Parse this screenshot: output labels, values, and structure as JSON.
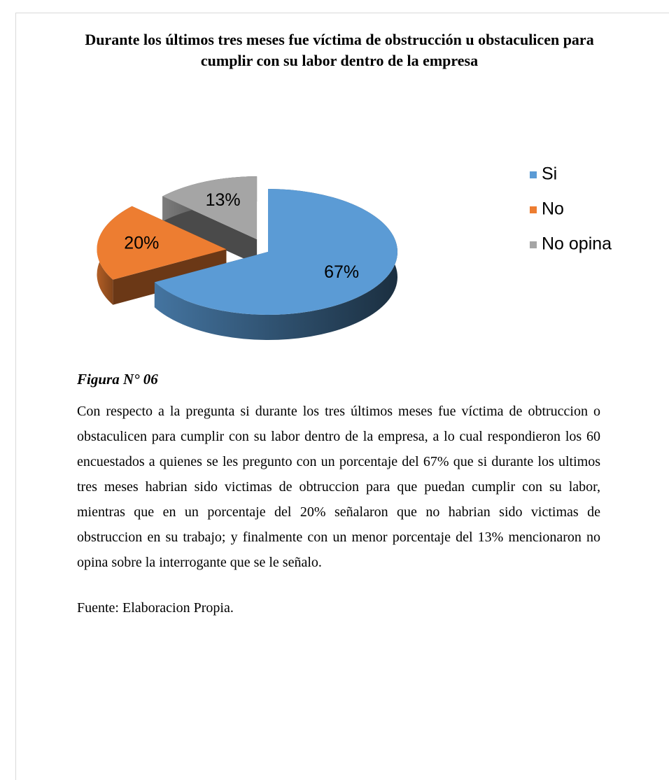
{
  "chart_data": {
    "type": "pie",
    "title": "Durante los últimos tres meses fue víctima de obstrucción u obstaculicen para cumplir con su labor dentro de la empresa",
    "categories": [
      "Si",
      "No",
      "No opina"
    ],
    "values": [
      67,
      20,
      13
    ],
    "value_labels": [
      "67%",
      "20%",
      "13%"
    ],
    "colors": [
      "#5b9bd5",
      "#ed7d31",
      "#a5a5a5"
    ],
    "legend": "right"
  },
  "figure_label": "Figura N° 06",
  "paragraph": "Con respecto a la pregunta si durante los tres últimos meses fue víctima de obtruccion o obstaculicen para cumplir con su labor dentro de la empresa, a lo cual respondieron los  60 encuestados a quienes se les pregunto con un porcentaje del 67% que si durante los ultimos tres meses habrian sido victimas de obtruccion para que puedan cumplir con su labor, mientras que en un porcentaje del 20% señalaron que no habrian sido victimas de obstruccion en su trabajo; y finalmente con un menor porcentaje del 13% mencionaron no opina sobre la interrogante que se le señalo.",
  "source": "Fuente: Elaboracion Propia."
}
